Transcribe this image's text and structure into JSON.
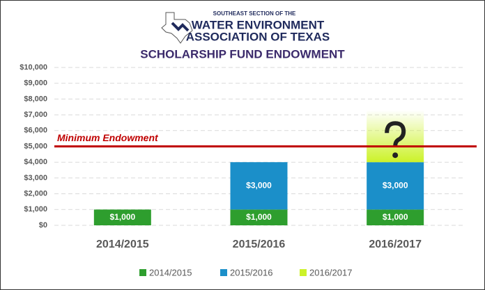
{
  "header": {
    "org_line1": "SOUTHEAST SECTION OF THE",
    "org_line2": "WATER ENVIRONMENT",
    "org_line3": "ASSOCIATION OF TEXAS"
  },
  "chart_data": {
    "type": "bar",
    "stacked": true,
    "title": "SCHOLARSHIP FUND ENDOWMENT",
    "categories": [
      "2014/2015",
      "2015/2016",
      "2016/2017"
    ],
    "series": [
      {
        "name": "2014/2015",
        "color": "#2e9e2e",
        "values": [
          1000,
          1000,
          1000
        ],
        "value_labels": [
          "$1,000",
          "$1,000",
          "$1,000"
        ]
      },
      {
        "name": "2015/2016",
        "color": "#1b8fc9",
        "values": [
          null,
          3000,
          3000
        ],
        "value_labels": [
          null,
          "$3,000",
          "$3,000"
        ]
      },
      {
        "name": "2016/2017",
        "color": "#ccf229",
        "values": [
          null,
          null,
          null
        ]
      }
    ],
    "ylim": [
      0,
      10000
    ],
    "yticks": [
      {
        "value": 0,
        "label": "$0"
      },
      {
        "value": 1000,
        "label": "$1,000"
      },
      {
        "value": 2000,
        "label": "$2,000"
      },
      {
        "value": 3000,
        "label": "$3,000"
      },
      {
        "value": 4000,
        "label": "$4,000"
      },
      {
        "value": 5000,
        "label": "$5,000"
      },
      {
        "value": 6000,
        "label": "$6,000"
      },
      {
        "value": 7000,
        "label": "$7,000"
      },
      {
        "value": 8000,
        "label": "$8,000"
      },
      {
        "value": 9000,
        "label": "$9,000"
      },
      {
        "value": 10000,
        "label": "$10,000"
      }
    ],
    "grid": true,
    "legend": "bottom",
    "reference_line": {
      "value": 5000,
      "label": "Minimum Endowment",
      "color": "#c00000"
    }
  }
}
